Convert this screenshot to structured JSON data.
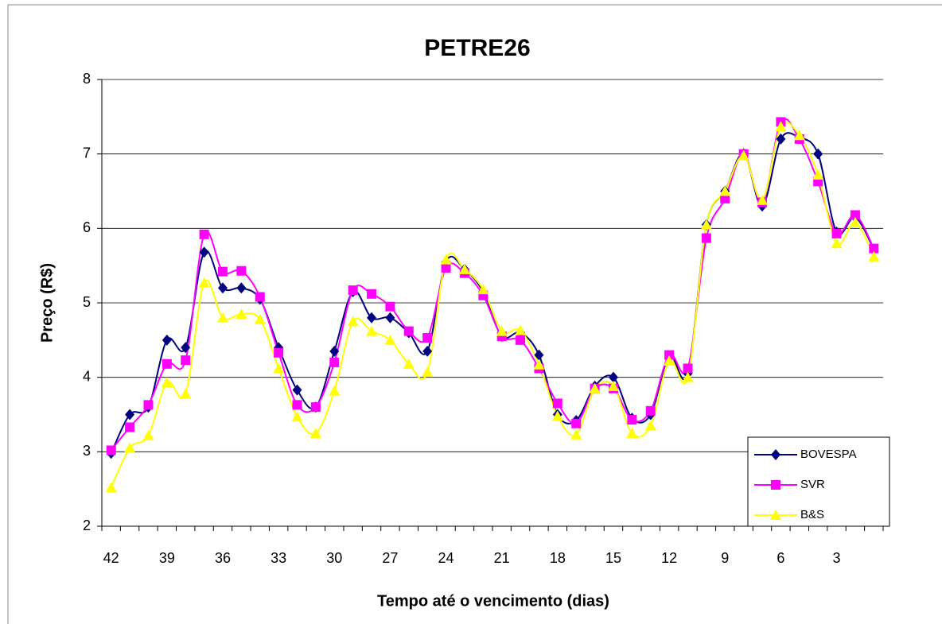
{
  "chart_data": {
    "type": "line",
    "title": "PETRE26",
    "x_label": "Tempo até o vencimento (dias)",
    "y_label": "Preço (R$)",
    "categories": [
      "42",
      null,
      null,
      "39",
      null,
      null,
      "36",
      null,
      null,
      "33",
      null,
      null,
      "30",
      null,
      null,
      "27",
      null,
      null,
      "24",
      null,
      null,
      "21",
      null,
      null,
      "18",
      null,
      null,
      "15",
      null,
      null,
      "12",
      null,
      null,
      "9",
      null,
      null,
      "6",
      null,
      null,
      "3",
      null,
      null
    ],
    "series": [
      {
        "name": "BOVESPA",
        "color": "#000080",
        "marker": "diamond",
        "values": [
          2.98,
          3.5,
          3.6,
          4.5,
          4.4,
          5.68,
          5.2,
          5.2,
          5.05,
          4.4,
          3.83,
          3.6,
          4.35,
          5.15,
          4.8,
          4.8,
          4.6,
          4.35,
          5.55,
          5.45,
          5.15,
          4.55,
          4.6,
          4.3,
          3.5,
          3.42,
          3.88,
          4.0,
          3.45,
          3.5,
          4.28,
          4.05,
          6.05,
          6.5,
          7.0,
          6.3,
          7.2,
          7.22,
          7.0,
          5.95,
          6.15,
          5.72
        ]
      },
      {
        "name": "SVR",
        "color": "#FF00FF",
        "marker": "square",
        "values": [
          3.02,
          3.33,
          3.63,
          4.18,
          4.23,
          5.92,
          5.42,
          5.43,
          5.08,
          4.33,
          3.63,
          3.6,
          4.2,
          5.17,
          5.12,
          4.95,
          4.62,
          4.53,
          5.47,
          5.4,
          5.1,
          4.55,
          4.5,
          4.12,
          3.65,
          3.38,
          3.85,
          3.85,
          3.43,
          3.55,
          4.3,
          4.12,
          5.87,
          6.4,
          7.0,
          6.35,
          7.43,
          7.2,
          6.63,
          5.93,
          6.18,
          5.73
        ]
      },
      {
        "name": "B&S",
        "color": "#FFFF00",
        "marker": "triangle",
        "values": [
          2.52,
          3.05,
          3.22,
          3.93,
          3.78,
          5.27,
          4.8,
          4.85,
          4.78,
          4.12,
          3.47,
          3.25,
          3.82,
          4.75,
          4.62,
          4.5,
          4.18,
          4.07,
          5.58,
          5.45,
          5.18,
          4.62,
          4.63,
          4.17,
          3.48,
          3.23,
          3.85,
          3.88,
          3.25,
          3.35,
          4.22,
          4.0,
          6.05,
          6.5,
          6.98,
          6.38,
          7.37,
          7.25,
          6.72,
          5.8,
          6.08,
          5.62
        ]
      }
    ],
    "ylim": [
      2,
      8
    ],
    "yticks": [
      2,
      3,
      4,
      5,
      6,
      7,
      8
    ],
    "grid": true,
    "legend": "lower right"
  }
}
